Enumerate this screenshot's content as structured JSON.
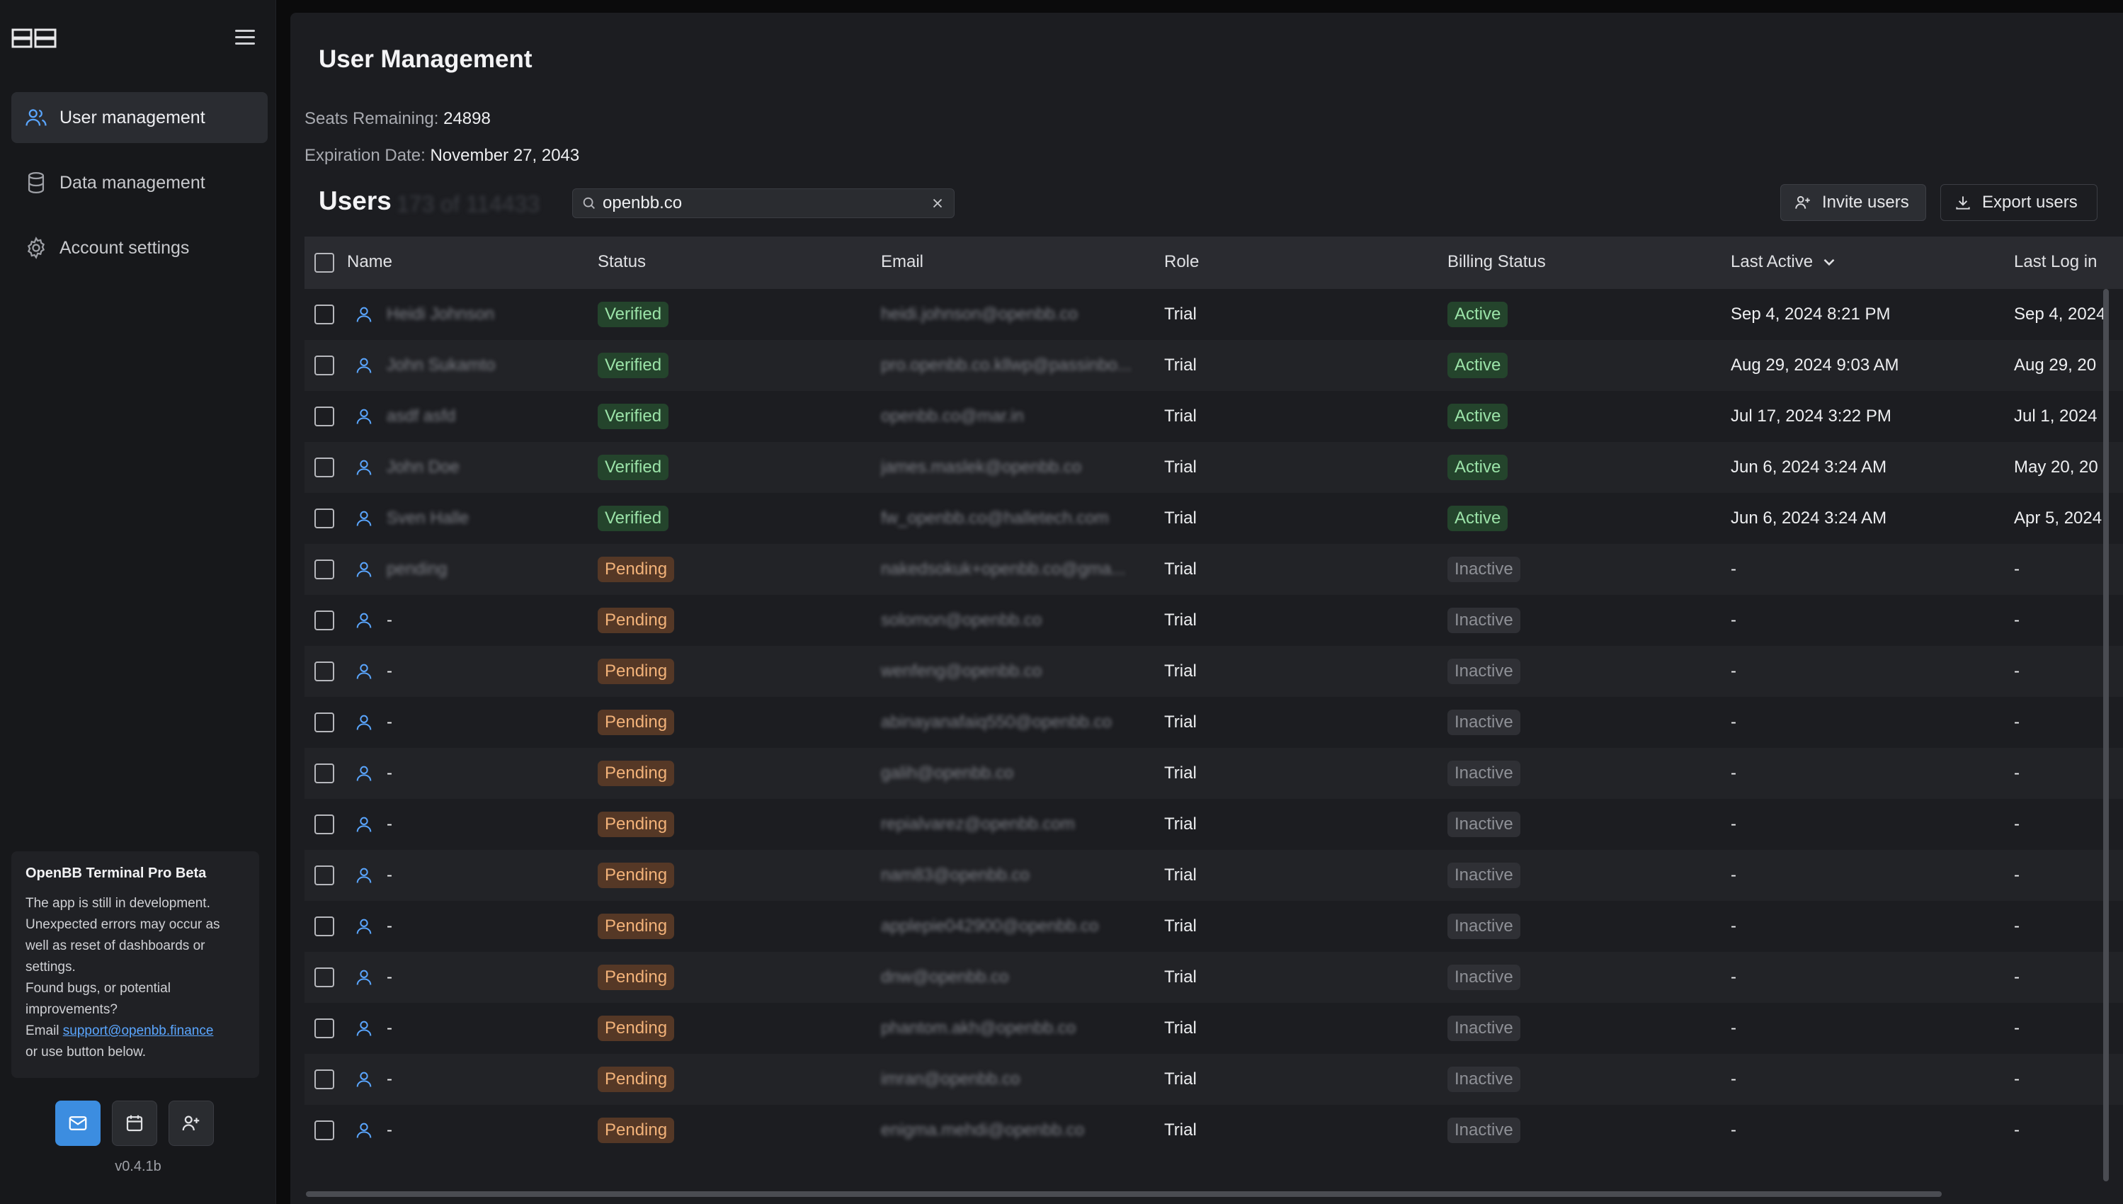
{
  "sidebar": {
    "items": [
      {
        "label": "User management",
        "icon": "users-icon",
        "active": true
      },
      {
        "label": "Data management",
        "icon": "database-icon",
        "active": false
      },
      {
        "label": "Account settings",
        "icon": "gear-icon",
        "active": false
      }
    ],
    "beta": {
      "title": "OpenBB Terminal Pro Beta",
      "line1": "The app is still in development. Unexpected errors may occur as well as reset of dashboards or settings.",
      "line2": "Found bugs, or potential improvements?",
      "email_prefix": "Email ",
      "email": "support@openbb.finance",
      "line3": "or use button below."
    },
    "version": "v0.4.1b"
  },
  "main": {
    "title": "User Management",
    "seats_label": "Seats Remaining:",
    "seats_value": "24898",
    "expiry_label": "Expiration Date:",
    "expiry_value": "November 27, 2043",
    "users_title": "Users",
    "users_count": "173 of 114433",
    "search": {
      "value": "openbb.co",
      "placeholder": "Search"
    },
    "invite_label": "Invite users",
    "export_label": "Export users"
  },
  "table": {
    "columns": [
      "Name",
      "Status",
      "Email",
      "Role",
      "Billing Status",
      "Last Active",
      "Last Log in"
    ],
    "rows": [
      {
        "name": "Heidi Johnson",
        "status": "Verified",
        "email": "heidi.johnson@openbb.co",
        "role": "Trial",
        "billing": "Active",
        "last_active": "Sep 4, 2024 8:21 PM",
        "last_login": "Sep 4, 2024"
      },
      {
        "name": "John Sukamto",
        "status": "Verified",
        "email": "pro.openbb.co.kllwp@passinbo...",
        "role": "Trial",
        "billing": "Active",
        "last_active": "Aug 29, 2024 9:03 AM",
        "last_login": "Aug 29, 20"
      },
      {
        "name": "asdf asfd",
        "status": "Verified",
        "email": "openbb.co@mar.in",
        "role": "Trial",
        "billing": "Active",
        "last_active": "Jul 17, 2024 3:22 PM",
        "last_login": "Jul 1, 2024"
      },
      {
        "name": "John Doe",
        "status": "Verified",
        "email": "james.maslek@openbb.co",
        "role": "Trial",
        "billing": "Active",
        "last_active": "Jun 6, 2024 3:24 AM",
        "last_login": "May 20, 20"
      },
      {
        "name": "Sven Halle",
        "status": "Verified",
        "email": "fw_openbb.co@halletech.com",
        "role": "Trial",
        "billing": "Active",
        "last_active": "Jun 6, 2024 3:24 AM",
        "last_login": "Apr 5, 2024"
      },
      {
        "name": "pending",
        "status": "Pending",
        "email": "nakedsokuk+openbb.co@gma...",
        "role": "Trial",
        "billing": "Inactive",
        "last_active": "-",
        "last_login": "-"
      },
      {
        "name": "-",
        "status": "Pending",
        "email": "solomon@openbb.co",
        "role": "Trial",
        "billing": "Inactive",
        "last_active": "-",
        "last_login": "-"
      },
      {
        "name": "-",
        "status": "Pending",
        "email": "wenfeng@openbb.co",
        "role": "Trial",
        "billing": "Inactive",
        "last_active": "-",
        "last_login": "-"
      },
      {
        "name": "-",
        "status": "Pending",
        "email": "abinayanafaiq550@openbb.co",
        "role": "Trial",
        "billing": "Inactive",
        "last_active": "-",
        "last_login": "-"
      },
      {
        "name": "-",
        "status": "Pending",
        "email": "galih@openbb.co",
        "role": "Trial",
        "billing": "Inactive",
        "last_active": "-",
        "last_login": "-"
      },
      {
        "name": "-",
        "status": "Pending",
        "email": "repialvarez@openbb.com",
        "role": "Trial",
        "billing": "Inactive",
        "last_active": "-",
        "last_login": "-"
      },
      {
        "name": "-",
        "status": "Pending",
        "email": "nam83@openbb.co",
        "role": "Trial",
        "billing": "Inactive",
        "last_active": "-",
        "last_login": "-"
      },
      {
        "name": "-",
        "status": "Pending",
        "email": "applepie042900@openbb.co",
        "role": "Trial",
        "billing": "Inactive",
        "last_active": "-",
        "last_login": "-"
      },
      {
        "name": "-",
        "status": "Pending",
        "email": "dnw@openbb.co",
        "role": "Trial",
        "billing": "Inactive",
        "last_active": "-",
        "last_login": "-"
      },
      {
        "name": "-",
        "status": "Pending",
        "email": "phantom.akh@openbb.co",
        "role": "Trial",
        "billing": "Inactive",
        "last_active": "-",
        "last_login": "-"
      },
      {
        "name": "-",
        "status": "Pending",
        "email": "imran@openbb.co",
        "role": "Trial",
        "billing": "Inactive",
        "last_active": "-",
        "last_login": "-"
      },
      {
        "name": "-",
        "status": "Pending",
        "email": "enigma.mehdi@openbb.co",
        "role": "Trial",
        "billing": "Inactive",
        "last_active": "-",
        "last_login": "-"
      }
    ]
  },
  "colors": {
    "accent": "#3c8de0",
    "verified": "#9be3a8",
    "pending": "#f2b279"
  }
}
